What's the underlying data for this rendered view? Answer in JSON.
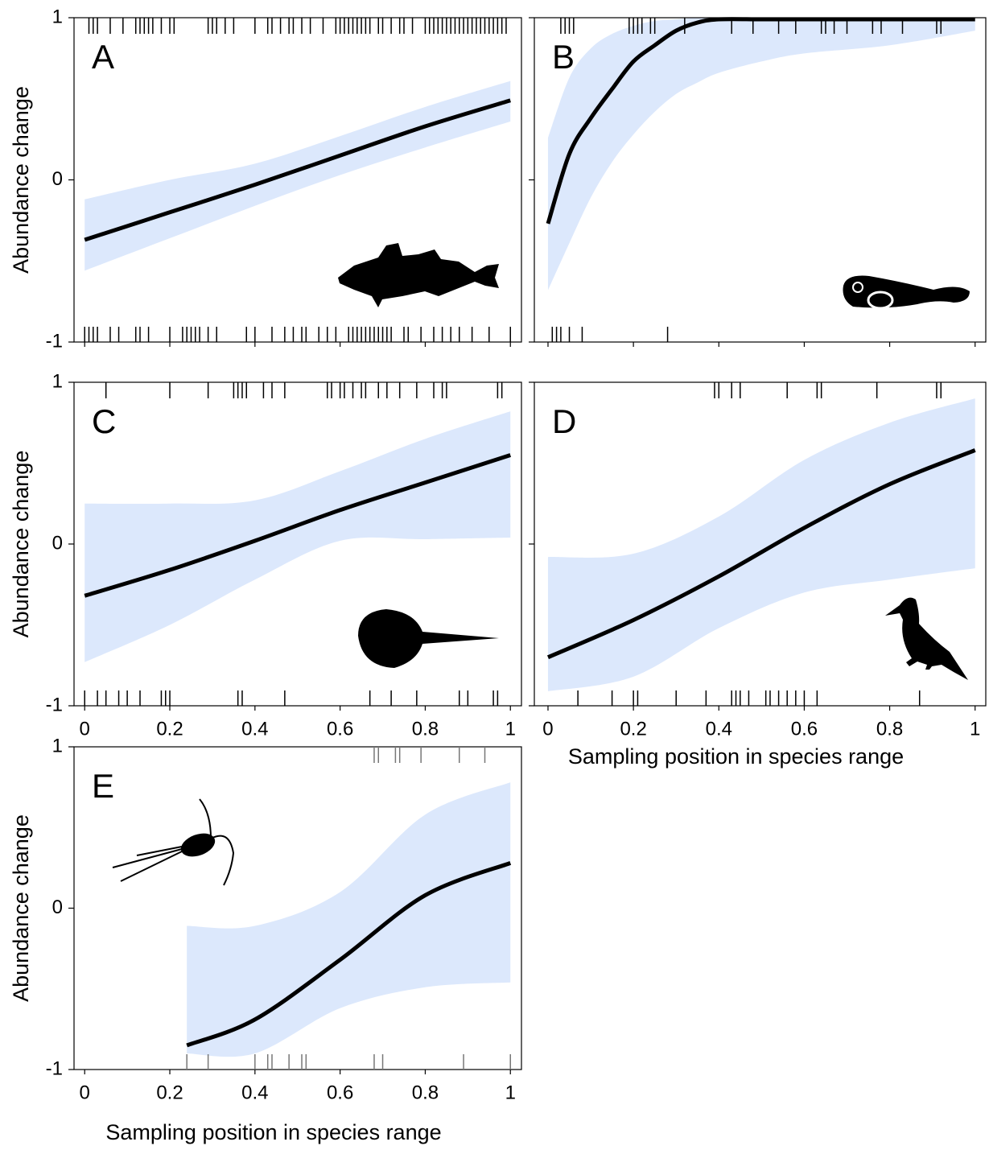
{
  "chart_data": [
    {
      "type": "line",
      "label": "A",
      "ylabel": "Abundance change",
      "x": [
        0,
        0.2,
        0.4,
        0.6,
        0.8,
        1
      ],
      "series": [
        {
          "color": "#000000",
          "values": [
            -0.37,
            -0.2,
            -0.03,
            0.15,
            0.33,
            0.49
          ]
        }
      ],
      "band": {
        "color": "#dce8fc",
        "lower": [
          -0.56,
          -0.36,
          -0.16,
          0.03,
          0.2,
          0.36
        ],
        "upper": [
          -0.12,
          0.0,
          0.1,
          0.27,
          0.45,
          0.61
        ]
      },
      "rug_color": "#000000",
      "rug_top": [
        0.01,
        0.02,
        0.03,
        0.06,
        0.09,
        0.12,
        0.13,
        0.14,
        0.15,
        0.16,
        0.18,
        0.2,
        0.21,
        0.29,
        0.3,
        0.31,
        0.33,
        0.35,
        0.4,
        0.43,
        0.44,
        0.46,
        0.48,
        0.49,
        0.51,
        0.53,
        0.56,
        0.59,
        0.6,
        0.61,
        0.62,
        0.63,
        0.64,
        0.65,
        0.66,
        0.67,
        0.69,
        0.7,
        0.72,
        0.74,
        0.75,
        0.77,
        0.8,
        0.81,
        0.82,
        0.83,
        0.84,
        0.85,
        0.86,
        0.87,
        0.88,
        0.89,
        0.9,
        0.91,
        0.92,
        0.93,
        0.94,
        0.95,
        0.96,
        0.97,
        0.98,
        0.99
      ],
      "rug_bottom": [
        0.0,
        0.01,
        0.02,
        0.03,
        0.06,
        0.08,
        0.12,
        0.13,
        0.15,
        0.2,
        0.23,
        0.24,
        0.25,
        0.26,
        0.27,
        0.29,
        0.31,
        0.38,
        0.4,
        0.44,
        0.47,
        0.49,
        0.51,
        0.52,
        0.55,
        0.57,
        0.59,
        0.62,
        0.63,
        0.64,
        0.65,
        0.66,
        0.67,
        0.68,
        0.69,
        0.7,
        0.71,
        0.72,
        0.75,
        0.76,
        0.79,
        0.82,
        0.84,
        0.86,
        0.88,
        0.91,
        0.95,
        1.0
      ],
      "xlim": [
        -0.025,
        1.026
      ],
      "ylim": [
        -1,
        1
      ],
      "xticks": [
        0,
        0.2,
        0.4,
        0.6,
        0.8,
        1
      ],
      "yticks": [
        -1,
        0,
        1
      ],
      "xtick_labels": false,
      "ytick_labels": true
    },
    {
      "type": "line",
      "label": "B",
      "x": [
        0,
        0.05,
        0.1,
        0.15,
        0.2,
        0.25,
        0.3,
        0.35,
        0.4,
        0.5,
        0.6,
        0.8,
        1
      ],
      "series": [
        {
          "color": "#000000",
          "values": [
            -0.27,
            0.16,
            0.38,
            0.56,
            0.73,
            0.83,
            0.92,
            0.97,
            0.99,
            0.99,
            0.99,
            0.99,
            0.99
          ]
        }
      ],
      "band": {
        "color": "#dce8fc",
        "lower": [
          -0.68,
          -0.39,
          -0.11,
          0.11,
          0.28,
          0.42,
          0.53,
          0.6,
          0.66,
          0.73,
          0.78,
          0.83,
          0.92
        ],
        "upper": [
          0.26,
          0.63,
          0.81,
          0.9,
          0.95,
          0.98,
          0.99,
          1.0,
          1.0,
          1.0,
          1.0,
          1.0,
          0.98
        ]
      },
      "rug_color": "#000000",
      "rug_top": [
        0.03,
        0.04,
        0.05,
        0.06,
        0.19,
        0.2,
        0.21,
        0.22,
        0.24,
        0.25,
        0.32,
        0.43,
        0.48,
        0.54,
        0.58,
        0.64,
        0.65,
        0.67,
        0.7,
        0.76,
        0.78,
        0.83,
        0.91,
        0.92
      ],
      "rug_bottom": [
        0.01,
        0.02,
        0.03,
        0.05,
        0.08,
        0.28
      ],
      "xlim": [
        -0.032,
        1.025
      ],
      "ylim": [
        -1,
        1
      ],
      "xticks": [
        0,
        0.2,
        0.4,
        0.6,
        0.8,
        1
      ],
      "yticks": [
        -1,
        0,
        1
      ],
      "xtick_labels": false,
      "ytick_labels": false
    },
    {
      "type": "line",
      "label": "C",
      "ylabel": "Abundance change",
      "x": [
        0,
        0.2,
        0.4,
        0.6,
        0.8,
        1
      ],
      "series": [
        {
          "color": "#000000",
          "values": [
            -0.32,
            -0.16,
            0.02,
            0.21,
            0.38,
            0.55
          ]
        }
      ],
      "band": {
        "color": "#dce8fc",
        "lower": [
          -0.73,
          -0.5,
          -0.22,
          0.02,
          0.03,
          0.04
        ],
        "upper": [
          0.25,
          0.25,
          0.27,
          0.45,
          0.65,
          0.82
        ]
      },
      "rug_color": "#000000",
      "rug_top": [
        0.05,
        0.2,
        0.29,
        0.35,
        0.36,
        0.37,
        0.38,
        0.42,
        0.44,
        0.47,
        0.57,
        0.58,
        0.6,
        0.61,
        0.63,
        0.65,
        0.66,
        0.69,
        0.71,
        0.74,
        0.78,
        0.82,
        0.84,
        0.85,
        0.97,
        0.98
      ],
      "rug_bottom": [
        0.0,
        0.03,
        0.05,
        0.08,
        0.1,
        0.13,
        0.18,
        0.19,
        0.2,
        0.36,
        0.37,
        0.47,
        0.67,
        0.72,
        0.78,
        0.88,
        0.9,
        0.96,
        0.97
      ],
      "xlim": [
        -0.025,
        1.026
      ],
      "ylim": [
        -1,
        1
      ],
      "xticks": [
        0,
        0.2,
        0.4,
        0.6,
        0.8,
        1
      ],
      "yticks": [
        -1,
        0,
        1
      ],
      "xtick_labels": true,
      "ytick_labels": true
    },
    {
      "type": "line",
      "label": "D",
      "xlabel": "Sampling position in species range",
      "x": [
        0,
        0.2,
        0.4,
        0.6,
        0.8,
        1
      ],
      "series": [
        {
          "color": "#000000",
          "values": [
            -0.7,
            -0.47,
            -0.2,
            0.1,
            0.37,
            0.58
          ]
        }
      ],
      "band": {
        "color": "#dce8fc",
        "lower": [
          -0.91,
          -0.82,
          -0.52,
          -0.3,
          -0.22,
          -0.15
        ],
        "upper": [
          -0.08,
          -0.06,
          0.17,
          0.52,
          0.75,
          0.9
        ]
      },
      "rug_color": "#000000",
      "rug_top": [
        0.39,
        0.4,
        0.43,
        0.45,
        0.56,
        0.63,
        0.64,
        0.77,
        0.91,
        0.92
      ],
      "rug_bottom": [
        0.07,
        0.15,
        0.2,
        0.21,
        0.3,
        0.37,
        0.43,
        0.44,
        0.45,
        0.47,
        0.51,
        0.52,
        0.54,
        0.56,
        0.58,
        0.6,
        0.63,
        0.87
      ],
      "xlim": [
        -0.032,
        1.025
      ],
      "ylim": [
        -1,
        1
      ],
      "xticks": [
        0,
        0.2,
        0.4,
        0.6,
        0.8,
        1
      ],
      "yticks": [
        -1,
        0,
        1
      ],
      "xtick_labels": true,
      "ytick_labels": false
    },
    {
      "type": "line",
      "label": "E",
      "ylabel": "Abundance change",
      "xlabel": "Sampling position in species range",
      "x": [
        0.24,
        0.4,
        0.6,
        0.8,
        1
      ],
      "series": [
        {
          "color": "#000000",
          "values": [
            -0.85,
            -0.69,
            -0.32,
            0.08,
            0.28
          ]
        }
      ],
      "band": {
        "color": "#dce8fc",
        "lower": [
          -0.9,
          -0.9,
          -0.62,
          -0.49,
          -0.46
        ],
        "upper": [
          -0.11,
          -0.11,
          0.1,
          0.58,
          0.78
        ]
      },
      "rug_color": "#777777",
      "rug_top": [
        0.68,
        0.69,
        0.73,
        0.74,
        0.79,
        0.88,
        0.94
      ],
      "rug_bottom": [
        0.24,
        0.29,
        0.4,
        0.43,
        0.44,
        0.48,
        0.51,
        0.52,
        0.68,
        0.7,
        0.89,
        1.0
      ],
      "xlim": [
        -0.025,
        1.026
      ],
      "ylim": [
        -1,
        1
      ],
      "xticks": [
        0,
        0.2,
        0.4,
        0.6,
        0.8,
        1
      ],
      "yticks": [
        -1,
        0,
        1
      ],
      "xtick_labels": true,
      "ytick_labels": true
    }
  ]
}
